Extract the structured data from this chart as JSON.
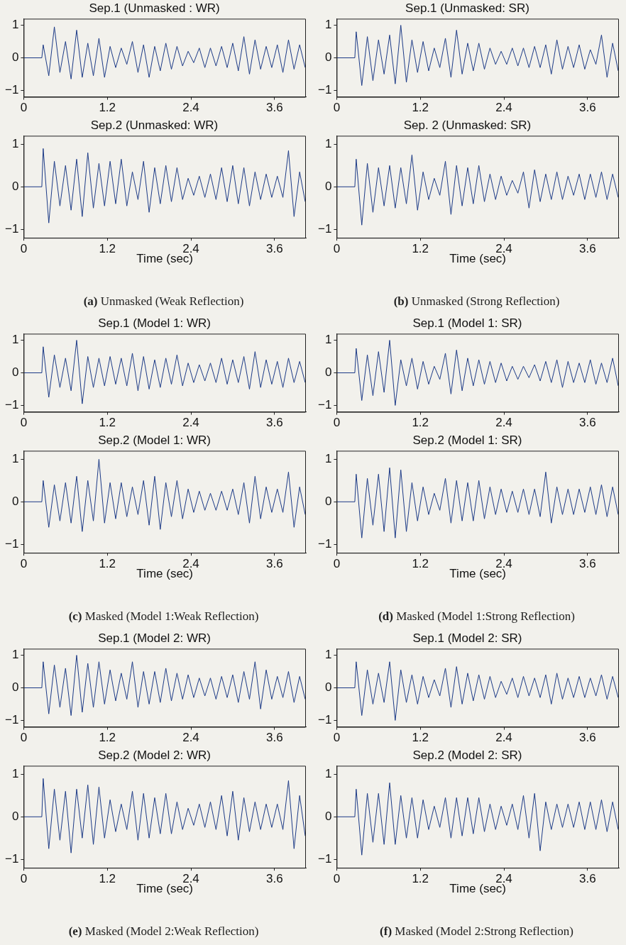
{
  "chart_data": [
    {
      "type": "line",
      "title": "Sep.1 (Unmasked : WR)",
      "color": "#1c3a86",
      "xlim": [
        0,
        4.05
      ],
      "xticks": [
        0,
        1.2,
        2.4,
        3.6
      ],
      "ylim": [
        -1.2,
        1.2
      ],
      "yticks": [
        -1,
        0,
        1
      ],
      "grid": false,
      "legend": false,
      "x": [
        0,
        0.26,
        0.28,
        0.36,
        0.44,
        0.52,
        0.6,
        0.68,
        0.76,
        0.84,
        0.92,
        1.0,
        1.08,
        1.16,
        1.24,
        1.32,
        1.4,
        1.48,
        1.56,
        1.64,
        1.72,
        1.8,
        1.88,
        1.96,
        2.04,
        2.12,
        2.2,
        2.28,
        2.36,
        2.44,
        2.52,
        2.6,
        2.68,
        2.76,
        2.84,
        2.92,
        3.0,
        3.08,
        3.16,
        3.24,
        3.32,
        3.4,
        3.48,
        3.56,
        3.64,
        3.72,
        3.8,
        3.88,
        3.96,
        4.04
      ],
      "values": [
        0,
        0,
        0.4,
        -0.55,
        0.95,
        -0.45,
        0.5,
        -0.65,
        0.85,
        -0.6,
        0.45,
        -0.55,
        0.6,
        -0.6,
        0.35,
        -0.3,
        0.3,
        -0.2,
        0.5,
        -0.45,
        0.4,
        -0.6,
        0.35,
        -0.4,
        0.45,
        -0.35,
        0.35,
        -0.25,
        0.2,
        -0.15,
        0.3,
        -0.3,
        0.3,
        -0.25,
        0.35,
        -0.3,
        0.45,
        -0.4,
        0.65,
        -0.5,
        0.55,
        -0.35,
        0.35,
        -0.3,
        0.4,
        -0.45,
        0.55,
        -0.35,
        0.4,
        -0.3
      ]
    },
    {
      "type": "line",
      "title": "Sep.1 (Unmasked: SR)",
      "color": "#1c3a86",
      "xlim": [
        0,
        4.05
      ],
      "xticks": [
        0,
        1.2,
        2.4,
        3.6
      ],
      "ylim": [
        -1.2,
        1.2
      ],
      "yticks": [
        -1,
        0,
        1
      ],
      "grid": false,
      "legend": false,
      "x": [
        0,
        0.26,
        0.28,
        0.36,
        0.44,
        0.52,
        0.6,
        0.68,
        0.76,
        0.84,
        0.92,
        1.0,
        1.08,
        1.16,
        1.24,
        1.32,
        1.4,
        1.48,
        1.56,
        1.64,
        1.72,
        1.8,
        1.88,
        1.96,
        2.04,
        2.12,
        2.2,
        2.28,
        2.36,
        2.44,
        2.52,
        2.6,
        2.68,
        2.76,
        2.84,
        2.92,
        3.0,
        3.08,
        3.16,
        3.24,
        3.32,
        3.4,
        3.48,
        3.56,
        3.64,
        3.72,
        3.8,
        3.88,
        3.96,
        4.04
      ],
      "values": [
        0,
        0,
        0.8,
        -0.85,
        0.65,
        -0.7,
        0.55,
        -0.5,
        0.7,
        -0.8,
        1.0,
        -0.75,
        0.55,
        -0.45,
        0.5,
        -0.4,
        0.3,
        -0.3,
        0.6,
        -0.6,
        0.85,
        -0.5,
        0.45,
        -0.4,
        0.45,
        -0.35,
        0.3,
        -0.2,
        0.2,
        -0.2,
        0.3,
        -0.25,
        0.3,
        -0.3,
        0.35,
        -0.3,
        0.4,
        -0.5,
        0.55,
        -0.35,
        0.35,
        -0.3,
        0.4,
        -0.35,
        0.25,
        -0.2,
        0.7,
        -0.6,
        0.45,
        -0.4
      ]
    },
    {
      "type": "line",
      "title": "Sep.2 (Unmasked: WR)",
      "xlabel": "Time (sec)",
      "annotations": [
        "(a) Unmasked (Weak Reflection)"
      ],
      "color": "#1c3a86",
      "xlim": [
        0,
        4.05
      ],
      "xticks": [
        0,
        1.2,
        2.4,
        3.6
      ],
      "ylim": [
        -1.2,
        1.2
      ],
      "yticks": [
        -1,
        0,
        1
      ],
      "grid": false,
      "legend": false,
      "x": [
        0,
        0.26,
        0.28,
        0.36,
        0.44,
        0.52,
        0.6,
        0.68,
        0.76,
        0.84,
        0.92,
        1.0,
        1.08,
        1.16,
        1.24,
        1.32,
        1.4,
        1.48,
        1.56,
        1.64,
        1.72,
        1.8,
        1.88,
        1.96,
        2.04,
        2.12,
        2.2,
        2.28,
        2.36,
        2.44,
        2.52,
        2.6,
        2.68,
        2.76,
        2.84,
        2.92,
        3.0,
        3.08,
        3.16,
        3.24,
        3.32,
        3.4,
        3.48,
        3.56,
        3.64,
        3.72,
        3.8,
        3.88,
        3.96,
        4.04
      ],
      "values": [
        0,
        0,
        0.9,
        -0.85,
        0.6,
        -0.45,
        0.5,
        -0.55,
        0.65,
        -0.7,
        0.8,
        -0.5,
        0.55,
        -0.45,
        0.6,
        -0.4,
        0.65,
        -0.45,
        0.35,
        -0.3,
        0.6,
        -0.6,
        0.45,
        -0.4,
        0.5,
        -0.35,
        0.45,
        -0.3,
        0.2,
        -0.2,
        0.25,
        -0.25,
        0.3,
        -0.3,
        0.45,
        -0.35,
        0.5,
        -0.4,
        0.45,
        -0.45,
        0.35,
        -0.3,
        0.3,
        -0.25,
        0.25,
        -0.25,
        0.85,
        -0.7,
        0.35,
        -0.35
      ]
    },
    {
      "type": "line",
      "title": "Sep. 2 (Unmasked: SR)",
      "xlabel": "Time (sec)",
      "annotations": [
        "(b) Unmasked (Strong Reflection)"
      ],
      "color": "#1c3a86",
      "xlim": [
        0,
        4.05
      ],
      "xticks": [
        0,
        1.2,
        2.4,
        3.6
      ],
      "ylim": [
        -1.2,
        1.2
      ],
      "yticks": [
        -1,
        0,
        1
      ],
      "grid": false,
      "legend": false,
      "x": [
        0,
        0.26,
        0.28,
        0.36,
        0.44,
        0.52,
        0.6,
        0.68,
        0.76,
        0.84,
        0.92,
        1.0,
        1.08,
        1.16,
        1.24,
        1.32,
        1.4,
        1.48,
        1.56,
        1.64,
        1.72,
        1.8,
        1.88,
        1.96,
        2.04,
        2.12,
        2.2,
        2.28,
        2.36,
        2.44,
        2.52,
        2.6,
        2.68,
        2.76,
        2.84,
        2.92,
        3.0,
        3.08,
        3.16,
        3.24,
        3.32,
        3.4,
        3.48,
        3.56,
        3.64,
        3.72,
        3.8,
        3.88,
        3.96,
        4.04
      ],
      "values": [
        0,
        0,
        0.65,
        -0.9,
        0.55,
        -0.6,
        0.45,
        -0.45,
        0.5,
        -0.5,
        0.45,
        -0.4,
        0.75,
        -0.55,
        0.35,
        -0.3,
        0.2,
        -0.2,
        0.6,
        -0.65,
        0.5,
        -0.45,
        0.45,
        -0.4,
        0.5,
        -0.35,
        0.3,
        -0.3,
        0.25,
        -0.2,
        0.15,
        -0.15,
        0.35,
        -0.5,
        0.4,
        -0.35,
        0.3,
        -0.3,
        0.35,
        -0.3,
        0.25,
        -0.2,
        0.3,
        -0.3,
        0.3,
        -0.25,
        0.35,
        -0.3,
        0.3,
        -0.25
      ]
    },
    {
      "type": "line",
      "title": "Sep.1 (Model 1: WR)",
      "color": "#1c3a86",
      "xlim": [
        0,
        4.05
      ],
      "xticks": [
        0,
        1.2,
        2.4,
        3.6
      ],
      "ylim": [
        -1.2,
        1.2
      ],
      "yticks": [
        -1,
        0,
        1
      ],
      "grid": false,
      "legend": false,
      "x": [
        0,
        0.26,
        0.28,
        0.36,
        0.44,
        0.52,
        0.6,
        0.68,
        0.76,
        0.84,
        0.92,
        1.0,
        1.08,
        1.16,
        1.24,
        1.32,
        1.4,
        1.48,
        1.56,
        1.64,
        1.72,
        1.8,
        1.88,
        1.96,
        2.04,
        2.12,
        2.2,
        2.28,
        2.36,
        2.44,
        2.52,
        2.6,
        2.68,
        2.76,
        2.84,
        2.92,
        3.0,
        3.08,
        3.16,
        3.24,
        3.32,
        3.4,
        3.48,
        3.56,
        3.64,
        3.72,
        3.8,
        3.88,
        3.96,
        4.04
      ],
      "values": [
        0,
        0,
        0.8,
        -0.75,
        0.55,
        -0.45,
        0.45,
        -0.55,
        1.0,
        -0.95,
        0.5,
        -0.45,
        0.45,
        -0.4,
        0.5,
        -0.35,
        0.45,
        -0.4,
        0.6,
        -0.55,
        0.5,
        -0.5,
        0.4,
        -0.45,
        0.45,
        -0.35,
        0.55,
        -0.4,
        0.3,
        -0.3,
        0.25,
        -0.25,
        0.3,
        -0.3,
        0.45,
        -0.35,
        0.4,
        -0.3,
        0.5,
        -0.5,
        0.65,
        -0.45,
        0.4,
        -0.35,
        0.35,
        -0.45,
        0.45,
        -0.3,
        0.35,
        -0.3
      ]
    },
    {
      "type": "line",
      "title": "Sep.1 (Model 1: SR)",
      "color": "#1c3a86",
      "xlim": [
        0,
        4.05
      ],
      "xticks": [
        0,
        1.2,
        2.4,
        3.6
      ],
      "ylim": [
        -1.2,
        1.2
      ],
      "yticks": [
        -1,
        0,
        1
      ],
      "grid": false,
      "legend": false,
      "x": [
        0,
        0.26,
        0.28,
        0.36,
        0.44,
        0.52,
        0.6,
        0.68,
        0.76,
        0.84,
        0.92,
        1.0,
        1.08,
        1.16,
        1.24,
        1.32,
        1.4,
        1.48,
        1.56,
        1.64,
        1.72,
        1.8,
        1.88,
        1.96,
        2.04,
        2.12,
        2.2,
        2.28,
        2.36,
        2.44,
        2.52,
        2.6,
        2.68,
        2.76,
        2.84,
        2.92,
        3.0,
        3.08,
        3.16,
        3.24,
        3.32,
        3.4,
        3.48,
        3.56,
        3.64,
        3.72,
        3.8,
        3.88,
        3.96,
        4.04
      ],
      "values": [
        0,
        0,
        0.75,
        -0.85,
        0.55,
        -0.7,
        0.65,
        -0.6,
        1.0,
        -1.0,
        0.4,
        -0.4,
        0.45,
        -0.5,
        0.35,
        -0.35,
        0.2,
        -0.2,
        0.6,
        -0.65,
        0.7,
        -0.55,
        0.45,
        -0.4,
        0.4,
        -0.35,
        0.35,
        -0.3,
        0.3,
        -0.25,
        0.2,
        -0.2,
        0.2,
        -0.15,
        0.25,
        -0.25,
        0.35,
        -0.3,
        0.4,
        -0.45,
        0.35,
        -0.3,
        0.3,
        -0.3,
        0.4,
        -0.35,
        0.3,
        -0.3,
        0.45,
        -0.4
      ]
    },
    {
      "type": "line",
      "title": "Sep.2 (Model 1: WR)",
      "xlabel": "Time (sec)",
      "annotations": [
        "(c) Masked (Model 1:Weak Reflection)"
      ],
      "color": "#1c3a86",
      "xlim": [
        0,
        4.05
      ],
      "xticks": [
        0,
        1.2,
        2.4,
        3.6
      ],
      "ylim": [
        -1.2,
        1.2
      ],
      "yticks": [
        -1,
        0,
        1
      ],
      "grid": false,
      "legend": false,
      "x": [
        0,
        0.26,
        0.28,
        0.36,
        0.44,
        0.52,
        0.6,
        0.68,
        0.76,
        0.84,
        0.92,
        1.0,
        1.08,
        1.16,
        1.24,
        1.32,
        1.4,
        1.48,
        1.56,
        1.64,
        1.72,
        1.8,
        1.88,
        1.96,
        2.04,
        2.12,
        2.2,
        2.28,
        2.36,
        2.44,
        2.52,
        2.6,
        2.68,
        2.76,
        2.84,
        2.92,
        3.0,
        3.08,
        3.16,
        3.24,
        3.32,
        3.4,
        3.48,
        3.56,
        3.64,
        3.72,
        3.8,
        3.88,
        3.96,
        4.04
      ],
      "values": [
        0,
        0,
        0.5,
        -0.6,
        0.4,
        -0.45,
        0.45,
        -0.5,
        0.6,
        -0.7,
        0.5,
        -0.45,
        1.0,
        -0.5,
        0.45,
        -0.4,
        0.45,
        -0.35,
        0.35,
        -0.3,
        0.5,
        -0.55,
        0.6,
        -0.65,
        0.45,
        -0.35,
        0.5,
        -0.4,
        0.3,
        -0.25,
        0.25,
        -0.2,
        0.2,
        -0.2,
        0.25,
        -0.2,
        0.3,
        -0.3,
        0.45,
        -0.5,
        0.6,
        -0.4,
        0.35,
        -0.25,
        0.3,
        -0.25,
        0.7,
        -0.6,
        0.35,
        -0.3
      ]
    },
    {
      "type": "line",
      "title": "Sep.2 (Model 1: SR)",
      "xlabel": "Time (sec)",
      "annotations": [
        "(d) Masked (Model 1:Strong Reflection)"
      ],
      "color": "#1c3a86",
      "xlim": [
        0,
        4.05
      ],
      "xticks": [
        0,
        1.2,
        2.4,
        3.6
      ],
      "ylim": [
        -1.2,
        1.2
      ],
      "yticks": [
        -1,
        0,
        1
      ],
      "grid": false,
      "legend": false,
      "x": [
        0,
        0.26,
        0.28,
        0.36,
        0.44,
        0.52,
        0.6,
        0.68,
        0.76,
        0.84,
        0.92,
        1.0,
        1.08,
        1.16,
        1.24,
        1.32,
        1.4,
        1.48,
        1.56,
        1.64,
        1.72,
        1.8,
        1.88,
        1.96,
        2.04,
        2.12,
        2.2,
        2.28,
        2.36,
        2.44,
        2.52,
        2.6,
        2.68,
        2.76,
        2.84,
        2.92,
        3.0,
        3.08,
        3.16,
        3.24,
        3.32,
        3.4,
        3.48,
        3.56,
        3.64,
        3.72,
        3.8,
        3.88,
        3.96,
        4.04
      ],
      "values": [
        0,
        0,
        0.65,
        -0.85,
        0.55,
        -0.55,
        0.65,
        -0.7,
        0.8,
        -0.85,
        0.75,
        -0.7,
        0.45,
        -0.45,
        0.35,
        -0.3,
        0.2,
        -0.2,
        0.55,
        -0.5,
        0.5,
        -0.45,
        0.45,
        -0.45,
        0.5,
        -0.4,
        0.35,
        -0.3,
        0.3,
        -0.25,
        0.25,
        -0.25,
        0.3,
        -0.3,
        0.3,
        -0.35,
        0.7,
        -0.5,
        0.35,
        -0.3,
        0.3,
        -0.3,
        0.3,
        -0.25,
        0.35,
        -0.3,
        0.4,
        -0.35,
        0.35,
        -0.3
      ]
    },
    {
      "type": "line",
      "title": "Sep.1 (Model 2: WR)",
      "color": "#1c3a86",
      "xlim": [
        0,
        4.05
      ],
      "xticks": [
        0,
        1.2,
        2.4,
        3.6
      ],
      "ylim": [
        -1.2,
        1.2
      ],
      "yticks": [
        -1,
        0,
        1
      ],
      "grid": false,
      "legend": false,
      "x": [
        0,
        0.26,
        0.28,
        0.36,
        0.44,
        0.52,
        0.6,
        0.68,
        0.76,
        0.84,
        0.92,
        1.0,
        1.08,
        1.16,
        1.24,
        1.32,
        1.4,
        1.48,
        1.56,
        1.64,
        1.72,
        1.8,
        1.88,
        1.96,
        2.04,
        2.12,
        2.2,
        2.28,
        2.36,
        2.44,
        2.52,
        2.6,
        2.68,
        2.76,
        2.84,
        2.92,
        3.0,
        3.08,
        3.16,
        3.24,
        3.32,
        3.4,
        3.48,
        3.56,
        3.64,
        3.72,
        3.8,
        3.88,
        3.96,
        4.04
      ],
      "values": [
        0,
        0,
        0.8,
        -0.8,
        0.7,
        -0.6,
        0.6,
        -0.85,
        1.0,
        -0.75,
        0.75,
        -0.6,
        0.8,
        -0.5,
        0.55,
        -0.4,
        0.45,
        -0.35,
        0.8,
        -0.6,
        0.5,
        -0.5,
        0.5,
        -0.45,
        0.6,
        -0.4,
        0.45,
        -0.35,
        0.4,
        -0.3,
        0.3,
        -0.25,
        0.3,
        -0.35,
        0.35,
        -0.3,
        0.4,
        -0.45,
        0.5,
        -0.35,
        0.8,
        -0.65,
        0.55,
        -0.35,
        0.35,
        -0.3,
        0.5,
        -0.45,
        0.35,
        -0.35
      ]
    },
    {
      "type": "line",
      "title": "Sep.1 (Model 2: SR)",
      "color": "#1c3a86",
      "xlim": [
        0,
        4.05
      ],
      "xticks": [
        0,
        1.2,
        2.4,
        3.6
      ],
      "ylim": [
        -1.2,
        1.2
      ],
      "yticks": [
        -1,
        0,
        1
      ],
      "grid": false,
      "legend": false,
      "x": [
        0,
        0.26,
        0.28,
        0.36,
        0.44,
        0.52,
        0.6,
        0.68,
        0.76,
        0.84,
        0.92,
        1.0,
        1.08,
        1.16,
        1.24,
        1.32,
        1.4,
        1.48,
        1.56,
        1.64,
        1.72,
        1.8,
        1.88,
        1.96,
        2.04,
        2.12,
        2.2,
        2.28,
        2.36,
        2.44,
        2.52,
        2.6,
        2.68,
        2.76,
        2.84,
        2.92,
        3.0,
        3.08,
        3.16,
        3.24,
        3.32,
        3.4,
        3.48,
        3.56,
        3.64,
        3.72,
        3.8,
        3.88,
        3.96,
        4.04
      ],
      "values": [
        0,
        0,
        0.8,
        -0.85,
        0.55,
        -0.5,
        0.45,
        -0.45,
        0.8,
        -1.0,
        0.55,
        -0.45,
        0.4,
        -0.5,
        0.35,
        -0.3,
        0.25,
        -0.25,
        0.6,
        -0.6,
        0.65,
        -0.5,
        0.45,
        -0.4,
        0.4,
        -0.35,
        0.35,
        -0.3,
        0.2,
        -0.2,
        0.3,
        -0.3,
        0.35,
        -0.25,
        0.3,
        -0.3,
        0.4,
        -0.5,
        0.45,
        -0.35,
        0.3,
        -0.3,
        0.35,
        -0.3,
        0.3,
        -0.25,
        0.4,
        -0.35,
        0.35,
        -0.3
      ]
    },
    {
      "type": "line",
      "title": "Sep.2 (Model 2: WR)",
      "xlabel": "Time (sec)",
      "annotations": [
        "(e) Masked (Model 2:Weak Reflection)"
      ],
      "color": "#1c3a86",
      "xlim": [
        0,
        4.05
      ],
      "xticks": [
        0,
        1.2,
        2.4,
        3.6
      ],
      "ylim": [
        -1.2,
        1.2
      ],
      "yticks": [
        -1,
        0,
        1
      ],
      "grid": false,
      "legend": false,
      "x": [
        0,
        0.26,
        0.28,
        0.36,
        0.44,
        0.52,
        0.6,
        0.68,
        0.76,
        0.84,
        0.92,
        1.0,
        1.08,
        1.16,
        1.24,
        1.32,
        1.4,
        1.48,
        1.56,
        1.64,
        1.72,
        1.8,
        1.88,
        1.96,
        2.04,
        2.12,
        2.2,
        2.28,
        2.36,
        2.44,
        2.52,
        2.6,
        2.68,
        2.76,
        2.84,
        2.92,
        3.0,
        3.08,
        3.16,
        3.24,
        3.32,
        3.4,
        3.48,
        3.56,
        3.64,
        3.72,
        3.8,
        3.88,
        3.96,
        4.04
      ],
      "values": [
        0,
        0,
        0.9,
        -0.75,
        0.65,
        -0.55,
        0.6,
        -0.85,
        0.65,
        -0.5,
        0.75,
        -0.65,
        0.7,
        -0.5,
        0.4,
        -0.35,
        0.3,
        -0.3,
        0.6,
        -0.55,
        0.55,
        -0.5,
        0.45,
        -0.4,
        0.55,
        -0.4,
        0.35,
        -0.3,
        0.2,
        -0.2,
        0.3,
        -0.25,
        0.35,
        -0.3,
        0.5,
        -0.45,
        0.6,
        -0.55,
        0.45,
        -0.35,
        0.35,
        -0.3,
        0.3,
        -0.25,
        0.3,
        -0.3,
        0.85,
        -0.75,
        0.5,
        -0.45
      ]
    },
    {
      "type": "line",
      "title": "Sep.2 (Model 2: SR)",
      "xlabel": "Time (sec)",
      "annotations": [
        "(f) Masked (Model 2:Strong Reflection)"
      ],
      "color": "#1c3a86",
      "xlim": [
        0,
        4.05
      ],
      "xticks": [
        0,
        1.2,
        2.4,
        3.6
      ],
      "ylim": [
        -1.2,
        1.2
      ],
      "yticks": [
        -1,
        0,
        1
      ],
      "grid": false,
      "legend": false,
      "x": [
        0,
        0.26,
        0.28,
        0.36,
        0.44,
        0.52,
        0.6,
        0.68,
        0.76,
        0.84,
        0.92,
        1.0,
        1.08,
        1.16,
        1.24,
        1.32,
        1.4,
        1.48,
        1.56,
        1.64,
        1.72,
        1.8,
        1.88,
        1.96,
        2.04,
        2.12,
        2.2,
        2.28,
        2.36,
        2.44,
        2.52,
        2.6,
        2.68,
        2.76,
        2.84,
        2.92,
        3.0,
        3.08,
        3.16,
        3.24,
        3.32,
        3.4,
        3.48,
        3.56,
        3.64,
        3.72,
        3.8,
        3.88,
        3.96,
        4.04
      ],
      "values": [
        0,
        0,
        0.65,
        -0.9,
        0.55,
        -0.6,
        0.55,
        -0.65,
        0.8,
        -0.65,
        0.5,
        -0.5,
        0.45,
        -0.5,
        0.4,
        -0.3,
        0.25,
        -0.25,
        0.45,
        -0.5,
        0.45,
        -0.45,
        0.45,
        -0.4,
        0.45,
        -0.35,
        0.3,
        -0.3,
        0.25,
        -0.2,
        0.3,
        -0.3,
        0.5,
        -0.5,
        0.55,
        -0.8,
        0.35,
        -0.3,
        0.3,
        -0.25,
        0.3,
        -0.25,
        0.35,
        -0.3,
        0.35,
        -0.3,
        0.4,
        -0.35,
        0.35,
        -0.3
      ]
    }
  ]
}
